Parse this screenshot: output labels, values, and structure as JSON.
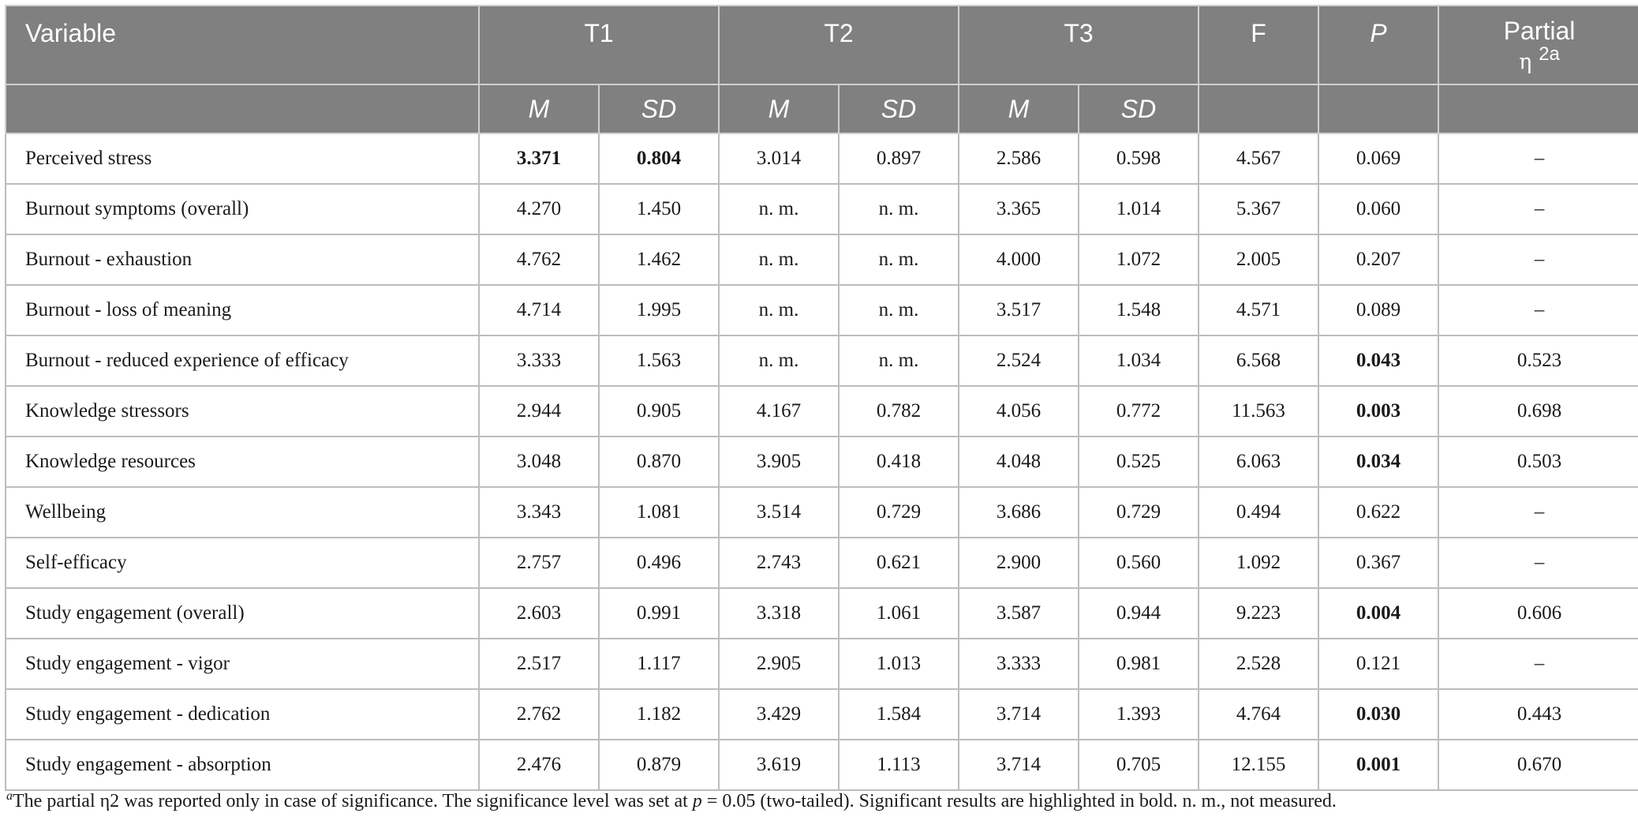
{
  "header": {
    "variable": "Variable",
    "t1": "T1",
    "t2": "T2",
    "t3": "T3",
    "f": "F",
    "p": "P",
    "eta_word": "Partial",
    "eta_symbol": "η",
    "eta_sup": "2a",
    "sub_m": "M",
    "sub_sd": "SD"
  },
  "rows": [
    {
      "variable": "Perceived stress",
      "t1_m": "3.371",
      "t1_sd": "0.804",
      "t2_m": "3.014",
      "t2_sd": "0.897",
      "t3_m": "2.586",
      "t3_sd": "0.598",
      "f": "4.567",
      "p": "0.069",
      "eta": "–",
      "bold": [
        "t1_m",
        "t1_sd"
      ]
    },
    {
      "variable": "Burnout symptoms (overall)",
      "t1_m": "4.270",
      "t1_sd": "1.450",
      "t2_m": "n. m.",
      "t2_sd": "n. m.",
      "t3_m": "3.365",
      "t3_sd": "1.014",
      "f": "5.367",
      "p": "0.060",
      "eta": "–",
      "bold": []
    },
    {
      "variable": "Burnout - exhaustion",
      "t1_m": "4.762",
      "t1_sd": "1.462",
      "t2_m": "n. m.",
      "t2_sd": "n. m.",
      "t3_m": "4.000",
      "t3_sd": "1.072",
      "f": "2.005",
      "p": "0.207",
      "eta": "–",
      "bold": []
    },
    {
      "variable": "Burnout - loss of meaning",
      "t1_m": "4.714",
      "t1_sd": "1.995",
      "t2_m": "n. m.",
      "t2_sd": "n. m.",
      "t3_m": "3.517",
      "t3_sd": "1.548",
      "f": "4.571",
      "p": "0.089",
      "eta": "–",
      "bold": []
    },
    {
      "variable": "Burnout - reduced experience of efficacy",
      "t1_m": "3.333",
      "t1_sd": "1.563",
      "t2_m": "n. m.",
      "t2_sd": "n. m.",
      "t3_m": "2.524",
      "t3_sd": "1.034",
      "f": "6.568",
      "p": "0.043",
      "eta": "0.523",
      "bold": [
        "p"
      ]
    },
    {
      "variable": "Knowledge stressors",
      "t1_m": "2.944",
      "t1_sd": "0.905",
      "t2_m": "4.167",
      "t2_sd": "0.782",
      "t3_m": "4.056",
      "t3_sd": "0.772",
      "f": "11.563",
      "p": "0.003",
      "eta": "0.698",
      "bold": [
        "p"
      ]
    },
    {
      "variable": "Knowledge resources",
      "t1_m": "3.048",
      "t1_sd": "0.870",
      "t2_m": "3.905",
      "t2_sd": "0.418",
      "t3_m": "4.048",
      "t3_sd": "0.525",
      "f": "6.063",
      "p": "0.034",
      "eta": "0.503",
      "bold": [
        "p"
      ]
    },
    {
      "variable": "Wellbeing",
      "t1_m": "3.343",
      "t1_sd": "1.081",
      "t2_m": "3.514",
      "t2_sd": "0.729",
      "t3_m": "3.686",
      "t3_sd": "0.729",
      "f": "0.494",
      "p": "0.622",
      "eta": "–",
      "bold": []
    },
    {
      "variable": "Self-efficacy",
      "t1_m": "2.757",
      "t1_sd": "0.496",
      "t2_m": "2.743",
      "t2_sd": "0.621",
      "t3_m": "2.900",
      "t3_sd": "0.560",
      "f": "1.092",
      "p": "0.367",
      "eta": "–",
      "bold": []
    },
    {
      "variable": "Study engagement (overall)",
      "t1_m": "2.603",
      "t1_sd": "0.991",
      "t2_m": "3.318",
      "t2_sd": "1.061",
      "t3_m": "3.587",
      "t3_sd": "0.944",
      "f": "9.223",
      "p": "0.004",
      "eta": "0.606",
      "bold": [
        "p"
      ]
    },
    {
      "variable": "Study engagement - vigor",
      "t1_m": "2.517",
      "t1_sd": "1.117",
      "t2_m": "2.905",
      "t2_sd": "1.013",
      "t3_m": "3.333",
      "t3_sd": "0.981",
      "f": "2.528",
      "p": "0.121",
      "eta": "–",
      "bold": []
    },
    {
      "variable": "Study engagement - dedication",
      "t1_m": "2.762",
      "t1_sd": "1.182",
      "t2_m": "3.429",
      "t2_sd": "1.584",
      "t3_m": "3.714",
      "t3_sd": "1.393",
      "f": "4.764",
      "p": "0.030",
      "eta": "0.443",
      "bold": [
        "p"
      ]
    },
    {
      "variable": "Study engagement - absorption",
      "t1_m": "2.476",
      "t1_sd": "0.879",
      "t2_m": "3.619",
      "t2_sd": "1.113",
      "t3_m": "3.714",
      "t3_sd": "0.705",
      "f": "12.155",
      "p": "0.001",
      "eta": "0.670",
      "bold": [
        "p"
      ]
    }
  ],
  "footnote": {
    "marker": "a",
    "text_1": "The partial η2 was reported only in case of significance. The significance level was set at ",
    "p_italic": "p",
    "text_2": " = 0.05 (two-tailed). Significant results are highlighted in bold. n. m., not measured."
  }
}
